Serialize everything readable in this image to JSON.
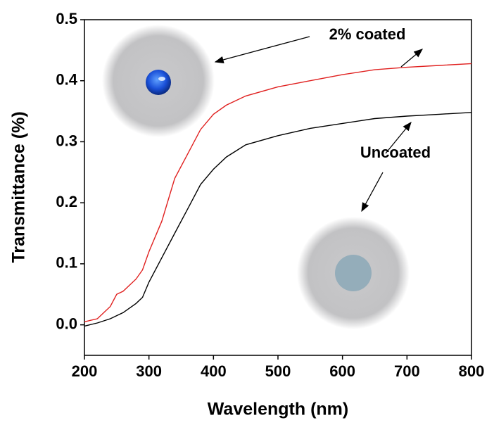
{
  "chart_data": {
    "type": "line",
    "x_label": "Wavelength (nm)",
    "y_label": "Transmittance (%)",
    "annotations": [
      "2% coated",
      "Uncoated"
    ],
    "x": [
      200,
      220,
      240,
      250,
      260,
      280,
      290,
      300,
      320,
      340,
      360,
      380,
      400,
      420,
      450,
      500,
      550,
      600,
      650,
      700,
      750,
      800
    ],
    "series": [
      {
        "name": "2% coated",
        "color": "#e0201f",
        "values": [
          0.005,
          0.01,
          0.03,
          0.05,
          0.055,
          0.075,
          0.09,
          0.12,
          0.17,
          0.24,
          0.28,
          0.32,
          0.345,
          0.36,
          0.375,
          0.39,
          0.4,
          0.41,
          0.418,
          0.422,
          0.425,
          0.428
        ]
      },
      {
        "name": "Uncoated",
        "color": "#000000",
        "values": [
          -0.002,
          0.003,
          0.01,
          0.015,
          0.02,
          0.035,
          0.045,
          0.07,
          0.11,
          0.15,
          0.19,
          0.23,
          0.255,
          0.275,
          0.295,
          0.31,
          0.322,
          0.33,
          0.338,
          0.342,
          0.345,
          0.348
        ]
      }
    ],
    "xlim": [
      200,
      800
    ],
    "xticks": [
      200,
      300,
      400,
      500,
      600,
      700,
      800
    ],
    "ylim": [
      -0.05,
      0.5
    ],
    "yticks": [
      {
        "value": 0,
        "label": "0.0"
      },
      0.1,
      0.2,
      0.3,
      0.4,
      0.5
    ]
  }
}
